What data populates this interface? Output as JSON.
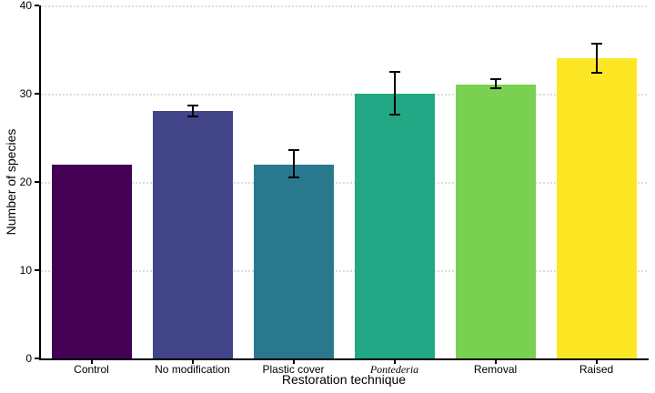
{
  "chart_data": {
    "type": "bar",
    "title": "",
    "xlabel": "Restoration technique",
    "ylabel": "Number of species",
    "ylim": [
      0,
      40
    ],
    "yticks": [
      0,
      10,
      20,
      30,
      40
    ],
    "grid": "horizontal dotted major gridlines only",
    "legend_position": "none",
    "categories": [
      "Control",
      "No modification",
      "Plastic cover",
      "Pontederia",
      "Removal",
      "Raised"
    ],
    "values": [
      22,
      28,
      22,
      30,
      31,
      34
    ],
    "error_bars": [
      null,
      {
        "low": 27.4,
        "high": 28.7
      },
      {
        "low": 20.5,
        "high": 23.6
      },
      {
        "low": 27.6,
        "high": 32.5
      },
      {
        "low": 30.6,
        "high": 31.6
      },
      {
        "low": 32.4,
        "high": 35.7
      }
    ],
    "bar_colors": [
      "#440154",
      "#414487",
      "#2A788E",
      "#22A884",
      "#7AD151",
      "#FDE725"
    ],
    "italic_categories": [
      "Pontederia"
    ],
    "error_bar_color": "#000000",
    "axis_color": "#000000",
    "gridline_color": "#dcdcdc",
    "background_color": "#ffffff"
  }
}
